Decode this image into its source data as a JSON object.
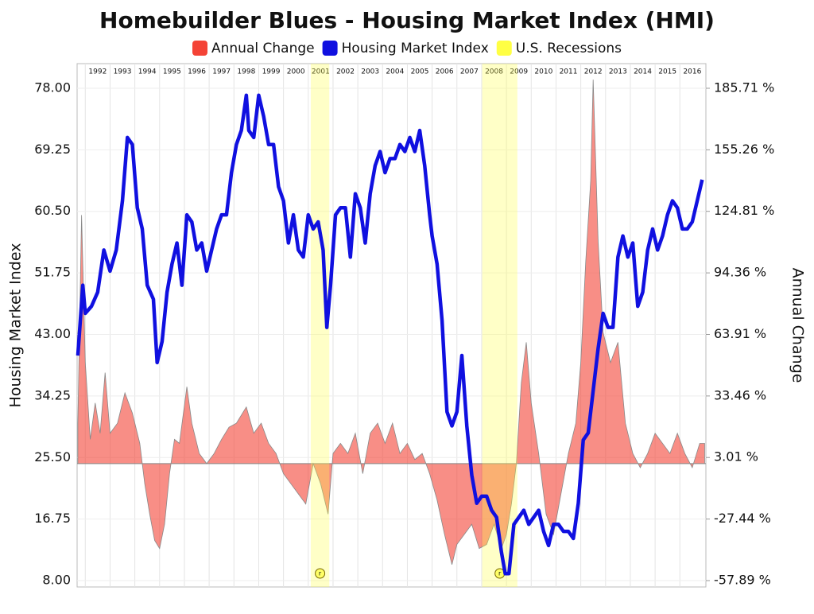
{
  "chart_data": {
    "type": "line",
    "title": "Homebuilder Blues - Housing Market Index (HMI)",
    "ylabel": "Housing Market Index",
    "y2label": "Annual Change",
    "xlim": [
      1991.67,
      2017.05
    ],
    "ylim": [
      7.1,
      81.5
    ],
    "y2lim": [
      -61.04,
      197.9
    ],
    "xticks": [
      1992,
      1993,
      1994,
      1995,
      1996,
      1997,
      1998,
      1999,
      2000,
      2001,
      2002,
      2003,
      2004,
      2005,
      2006,
      2007,
      2008,
      2009,
      2010,
      2011,
      2012,
      2013,
      2014,
      2015,
      2016
    ],
    "yticks": [
      {
        "value": 8,
        "label": "8.00"
      },
      {
        "value": 16.75,
        "label": "16.75"
      },
      {
        "value": 25.5,
        "label": "25.50"
      },
      {
        "value": 34.25,
        "label": "34.25"
      },
      {
        "value": 43,
        "label": "43.00"
      },
      {
        "value": 51.75,
        "label": "51.75"
      },
      {
        "value": 60.5,
        "label": "60.50"
      },
      {
        "value": 69.25,
        "label": "69.25"
      },
      {
        "value": 78,
        "label": "78.00"
      }
    ],
    "y2ticks": [
      {
        "value": -57.89,
        "label": "-57.89 %"
      },
      {
        "value": -27.44,
        "label": "-27.44 %"
      },
      {
        "value": 3.01,
        "label": "3.01 %"
      },
      {
        "value": 33.46,
        "label": "33.46 %"
      },
      {
        "value": 63.91,
        "label": "63.91 %"
      },
      {
        "value": 94.36,
        "label": "94.36 %"
      },
      {
        "value": 124.81,
        "label": "124.81 %"
      },
      {
        "value": 155.26,
        "label": "155.26 %"
      },
      {
        "value": 185.71,
        "label": "185.71 %"
      }
    ],
    "grid": true,
    "legend": "top",
    "series": [
      {
        "name": "Annual Change",
        "color": "#f44336",
        "type": "area",
        "axis": "y2",
        "x": [
          1991.7,
          1991.85,
          1992.0,
          1992.2,
          1992.4,
          1992.6,
          1992.8,
          1993.0,
          1993.3,
          1993.6,
          1993.9,
          1994.2,
          1994.4,
          1994.6,
          1994.8,
          1995.0,
          1995.2,
          1995.4,
          1995.6,
          1995.8,
          1996.1,
          1996.3,
          1996.6,
          1996.9,
          1997.2,
          1997.5,
          1997.8,
          1998.1,
          1998.5,
          1998.8,
          1999.1,
          1999.4,
          1999.7,
          2000.0,
          2000.3,
          2000.6,
          2000.9,
          2001.2,
          2001.5,
          2001.8,
          2002.0,
          2002.3,
          2002.6,
          2002.9,
          2003.2,
          2003.5,
          2003.8,
          2004.1,
          2004.4,
          2004.7,
          2005.0,
          2005.3,
          2005.6,
          2005.9,
          2006.2,
          2006.5,
          2006.8,
          2007.0,
          2007.3,
          2007.6,
          2007.9,
          2008.2,
          2008.5,
          2008.8,
          2009.0,
          2009.2,
          2009.4,
          2009.6,
          2009.8,
          2010.0,
          2010.3,
          2010.6,
          2010.9,
          2011.2,
          2011.5,
          2011.8,
          2012.0,
          2012.2,
          2012.4,
          2012.5,
          2012.7,
          2012.9,
          2013.2,
          2013.5,
          2013.8,
          2014.1,
          2014.4,
          2014.7,
          2015.0,
          2015.3,
          2015.6,
          2015.9,
          2016.2,
          2016.5,
          2016.8,
          2017.0
        ],
        "values": [
          20,
          123,
          50,
          12,
          30,
          15,
          45,
          15,
          20,
          35,
          25,
          10,
          -10,
          -25,
          -38,
          -42,
          -30,
          -5,
          12,
          10,
          38,
          20,
          5,
          0,
          5,
          12,
          18,
          20,
          28,
          15,
          20,
          10,
          5,
          -5,
          -10,
          -15,
          -20,
          0,
          -10,
          -25,
          5,
          10,
          5,
          15,
          -5,
          15,
          20,
          10,
          20,
          5,
          10,
          2,
          5,
          -5,
          -18,
          -35,
          -50,
          -40,
          -35,
          -30,
          -42,
          -40,
          -30,
          -42,
          -35,
          -20,
          0,
          40,
          60,
          30,
          5,
          -25,
          -35,
          -15,
          5,
          20,
          50,
          100,
          140,
          190,
          110,
          65,
          50,
          60,
          20,
          5,
          -2,
          5,
          15,
          10,
          5,
          15,
          5,
          -2,
          10,
          10
        ]
      },
      {
        "name": "Housing Market Index",
        "color": "#1010e0",
        "type": "line",
        "x": [
          1991.7,
          1991.9,
          1992.0,
          1992.25,
          1992.5,
          1992.75,
          1993.0,
          1993.25,
          1993.5,
          1993.7,
          1993.9,
          1994.1,
          1994.3,
          1994.5,
          1994.75,
          1994.9,
          1995.1,
          1995.3,
          1995.5,
          1995.7,
          1995.9,
          1996.1,
          1996.3,
          1996.5,
          1996.7,
          1996.9,
          1997.1,
          1997.3,
          1997.5,
          1997.7,
          1997.9,
          1998.1,
          1998.3,
          1998.5,
          1998.6,
          1998.8,
          1999.0,
          1999.2,
          1999.4,
          1999.6,
          1999.8,
          2000.0,
          2000.2,
          2000.4,
          2000.6,
          2000.8,
          2001.0,
          2001.2,
          2001.4,
          2001.6,
          2001.75,
          2001.9,
          2002.1,
          2002.3,
          2002.5,
          2002.7,
          2002.9,
          2003.1,
          2003.3,
          2003.5,
          2003.7,
          2003.9,
          2004.1,
          2004.3,
          2004.5,
          2004.7,
          2004.9,
          2005.1,
          2005.3,
          2005.5,
          2005.7,
          2005.9,
          2006.0,
          2006.2,
          2006.4,
          2006.6,
          2006.8,
          2007.0,
          2007.2,
          2007.4,
          2007.6,
          2007.8,
          2008.0,
          2008.2,
          2008.4,
          2008.6,
          2008.8,
          2008.95,
          2009.1,
          2009.3,
          2009.5,
          2009.7,
          2009.9,
          2010.1,
          2010.3,
          2010.5,
          2010.7,
          2010.9,
          2011.1,
          2011.3,
          2011.5,
          2011.7,
          2011.9,
          2012.1,
          2012.3,
          2012.5,
          2012.7,
          2012.9,
          2013.1,
          2013.3,
          2013.5,
          2013.7,
          2013.9,
          2014.1,
          2014.3,
          2014.5,
          2014.7,
          2014.9,
          2015.1,
          2015.3,
          2015.5,
          2015.7,
          2015.9,
          2016.1,
          2016.3,
          2016.5,
          2016.7,
          2016.9
        ],
        "values": [
          40,
          50,
          46,
          47,
          49,
          55,
          52,
          55,
          62,
          71,
          70,
          61,
          58,
          50,
          48,
          39,
          42,
          49,
          53,
          56,
          50,
          60,
          59,
          55,
          56,
          52,
          55,
          58,
          60,
          60,
          66,
          70,
          72,
          77,
          72,
          71,
          77,
          74,
          70,
          70,
          64,
          62,
          56,
          60,
          55,
          54,
          60,
          58,
          59,
          55,
          44,
          50,
          60,
          61,
          61,
          54,
          63,
          61,
          56,
          63,
          67,
          69,
          66,
          68,
          68,
          70,
          69,
          71,
          69,
          72,
          67,
          60,
          57,
          53,
          45,
          32,
          30,
          32,
          40,
          30,
          23,
          19,
          20,
          20,
          18,
          17,
          12,
          9,
          9,
          16,
          17,
          18,
          16,
          17,
          18,
          15,
          13,
          16,
          16,
          15,
          15,
          14,
          19,
          28,
          29,
          35,
          41,
          46,
          44,
          44,
          54,
          57,
          54,
          56,
          47,
          49,
          55,
          58,
          55,
          57,
          60,
          62,
          61,
          58,
          58,
          59,
          62,
          65
        ]
      }
    ],
    "recessions": {
      "name": "U.S. Recessions",
      "color": "#ffff44",
      "marker": "r",
      "periods": [
        [
          2001.1,
          2001.85
        ],
        [
          2008.02,
          2009.44
        ]
      ]
    }
  }
}
